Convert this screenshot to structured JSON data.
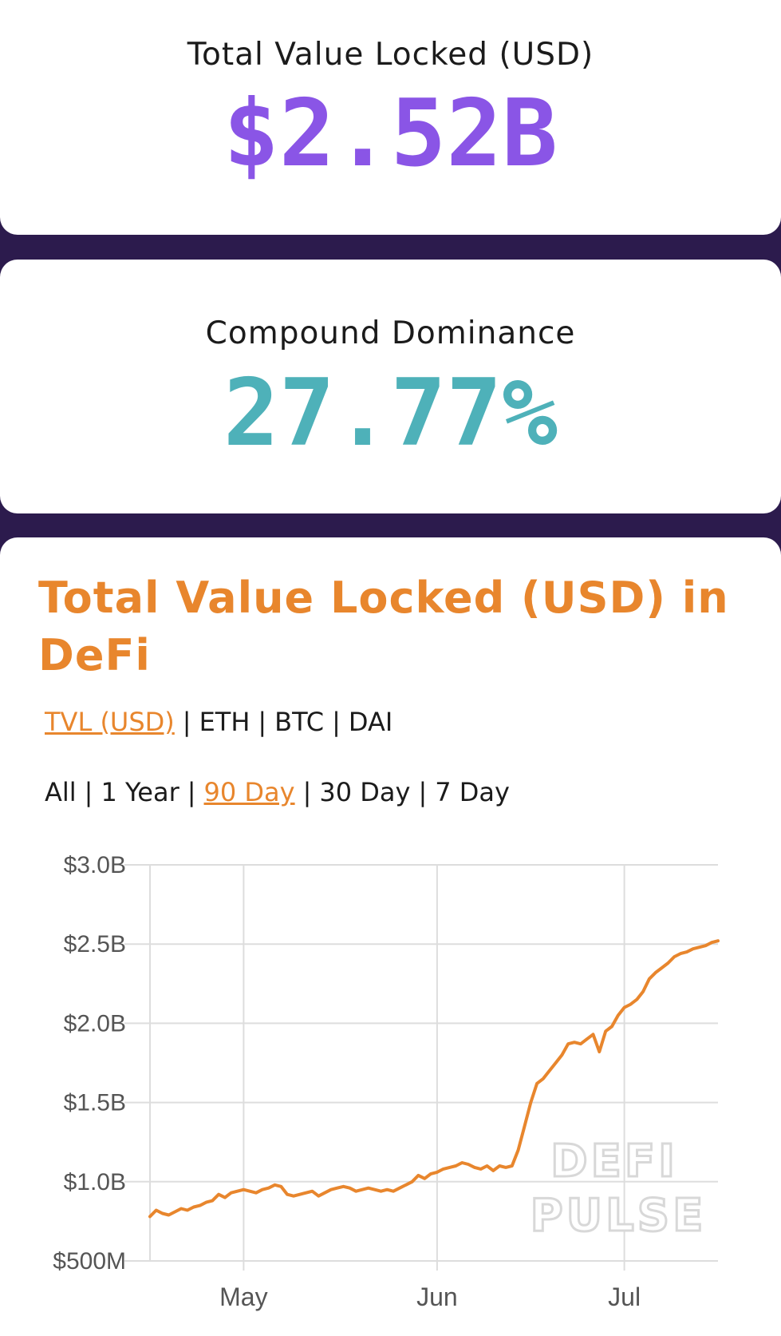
{
  "colors": {
    "background": "#2c1b4d",
    "tvl_value": "#8a55e6",
    "dominance_value": "#4eb1b9",
    "accent": "#e8862d",
    "grid": "#dddddd",
    "watermark": "#d8d8d8"
  },
  "tvl_card": {
    "label": "Total Value Locked (USD)",
    "value": "$2.52B"
  },
  "dominance_card": {
    "label": "Compound Dominance",
    "value": "27.77%"
  },
  "chart_card": {
    "title": "Total Value Locked (USD) in DeFi",
    "currency_options": [
      "TVL (USD)",
      "ETH",
      "BTC",
      "DAI"
    ],
    "currency_selected": "TVL (USD)",
    "range_options": [
      "All",
      "1 Year",
      "90 Day",
      "30 Day",
      "7 Day"
    ],
    "range_selected": "90 Day",
    "watermark": [
      "DEFI",
      "PULSE"
    ]
  },
  "chart_data": {
    "type": "line",
    "title": "",
    "xlabel": "",
    "ylabel": "",
    "ylim": [
      500000000,
      3000000000
    ],
    "y_ticks": [
      500000000,
      1000000000,
      1500000000,
      2000000000,
      2500000000,
      3000000000
    ],
    "y_tick_labels": [
      "$500M",
      "$1.0B",
      "$1.5B",
      "$2.0B",
      "$2.5B",
      "$3.0B"
    ],
    "x_tick_labels": [
      "May",
      "Jun",
      "Jul"
    ],
    "x_tick_dates": [
      "2020-05-01",
      "2020-06-01",
      "2020-07-01"
    ],
    "x_range": [
      "2020-04-16",
      "2020-07-16"
    ],
    "grid": true,
    "series": [
      {
        "name": "",
        "color": "#e8862d",
        "x": [
          "2020-04-16",
          "2020-04-17",
          "2020-04-18",
          "2020-04-19",
          "2020-04-20",
          "2020-04-21",
          "2020-04-22",
          "2020-04-23",
          "2020-04-24",
          "2020-04-25",
          "2020-04-26",
          "2020-04-27",
          "2020-04-28",
          "2020-04-29",
          "2020-04-30",
          "2020-05-01",
          "2020-05-02",
          "2020-05-03",
          "2020-05-04",
          "2020-05-05",
          "2020-05-06",
          "2020-05-07",
          "2020-05-08",
          "2020-05-09",
          "2020-05-10",
          "2020-05-11",
          "2020-05-12",
          "2020-05-13",
          "2020-05-14",
          "2020-05-15",
          "2020-05-16",
          "2020-05-17",
          "2020-05-18",
          "2020-05-19",
          "2020-05-20",
          "2020-05-21",
          "2020-05-22",
          "2020-05-23",
          "2020-05-24",
          "2020-05-25",
          "2020-05-26",
          "2020-05-27",
          "2020-05-28",
          "2020-05-29",
          "2020-05-30",
          "2020-05-31",
          "2020-06-01",
          "2020-06-02",
          "2020-06-03",
          "2020-06-04",
          "2020-06-05",
          "2020-06-06",
          "2020-06-07",
          "2020-06-08",
          "2020-06-09",
          "2020-06-10",
          "2020-06-11",
          "2020-06-12",
          "2020-06-13",
          "2020-06-14",
          "2020-06-15",
          "2020-06-16",
          "2020-06-17",
          "2020-06-18",
          "2020-06-19",
          "2020-06-20",
          "2020-06-21",
          "2020-06-22",
          "2020-06-23",
          "2020-06-24",
          "2020-06-25",
          "2020-06-26",
          "2020-06-27",
          "2020-06-28",
          "2020-06-29",
          "2020-06-30",
          "2020-07-01",
          "2020-07-02",
          "2020-07-03",
          "2020-07-04",
          "2020-07-05",
          "2020-07-06",
          "2020-07-07",
          "2020-07-08",
          "2020-07-09",
          "2020-07-10",
          "2020-07-11",
          "2020-07-12",
          "2020-07-13",
          "2020-07-14",
          "2020-07-15",
          "2020-07-16"
        ],
        "values": [
          780000000,
          820000000,
          800000000,
          790000000,
          810000000,
          830000000,
          820000000,
          840000000,
          850000000,
          870000000,
          880000000,
          920000000,
          900000000,
          930000000,
          940000000,
          950000000,
          940000000,
          930000000,
          950000000,
          960000000,
          980000000,
          970000000,
          920000000,
          910000000,
          920000000,
          930000000,
          940000000,
          910000000,
          930000000,
          950000000,
          960000000,
          970000000,
          960000000,
          940000000,
          950000000,
          960000000,
          950000000,
          940000000,
          950000000,
          940000000,
          960000000,
          980000000,
          1000000000,
          1040000000,
          1020000000,
          1050000000,
          1060000000,
          1080000000,
          1090000000,
          1100000000,
          1120000000,
          1110000000,
          1090000000,
          1080000000,
          1100000000,
          1070000000,
          1100000000,
          1090000000,
          1100000000,
          1200000000,
          1350000000,
          1500000000,
          1620000000,
          1650000000,
          1700000000,
          1750000000,
          1800000000,
          1870000000,
          1880000000,
          1870000000,
          1900000000,
          1930000000,
          1820000000,
          1950000000,
          1980000000,
          2050000000,
          2100000000,
          2120000000,
          2150000000,
          2200000000,
          2280000000,
          2320000000,
          2350000000,
          2380000000,
          2420000000,
          2440000000,
          2450000000,
          2470000000,
          2480000000,
          2490000000,
          2510000000,
          2520000000
        ]
      }
    ]
  }
}
